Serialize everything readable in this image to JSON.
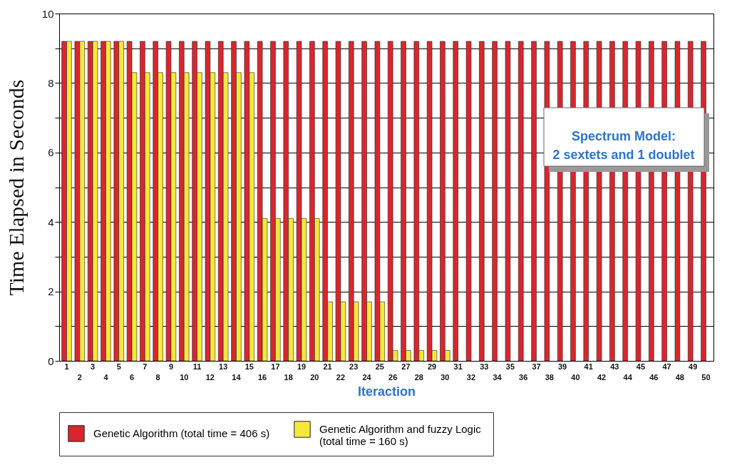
{
  "chart_data": {
    "type": "bar",
    "categories": [
      "1",
      "2",
      "3",
      "4",
      "5",
      "6",
      "7",
      "8",
      "9",
      "10",
      "11",
      "12",
      "13",
      "14",
      "15",
      "16",
      "17",
      "18",
      "19",
      "20",
      "21",
      "22",
      "23",
      "24",
      "25",
      "26",
      "27",
      "28",
      "29",
      "30",
      "31",
      "32",
      "33",
      "34",
      "35",
      "36",
      "37",
      "38",
      "39",
      "40",
      "41",
      "42",
      "43",
      "44",
      "45",
      "46",
      "47",
      "48",
      "49",
      "50"
    ],
    "series": [
      {
        "name": "Genetic Algorithm (total time = 406 s)",
        "color": "#d9262e",
        "values": [
          9.2,
          9.2,
          9.2,
          9.2,
          9.2,
          9.2,
          9.2,
          9.2,
          9.2,
          9.2,
          9.2,
          9.2,
          9.2,
          9.2,
          9.2,
          9.2,
          9.2,
          9.2,
          9.2,
          9.2,
          9.2,
          9.2,
          9.2,
          9.2,
          9.2,
          9.2,
          9.2,
          9.2,
          9.2,
          9.2,
          9.2,
          9.2,
          9.2,
          9.2,
          9.2,
          9.2,
          9.2,
          9.2,
          9.2,
          9.2,
          9.2,
          9.2,
          9.2,
          9.2,
          9.2,
          9.2,
          9.2,
          9.2,
          9.2,
          9.2
        ]
      },
      {
        "name": "Genetic Algorithm  and fuzzy Logic (total time = 160 s)",
        "color": "#f5e83c",
        "values": [
          9.2,
          9.2,
          9.2,
          9.2,
          9.2,
          8.3,
          8.3,
          8.3,
          8.3,
          8.3,
          8.3,
          8.3,
          8.3,
          8.3,
          8.3,
          4.1,
          4.1,
          4.1,
          4.1,
          4.1,
          1.7,
          1.7,
          1.7,
          1.7,
          1.7,
          0.3,
          0.3,
          0.3,
          0.3,
          0.3,
          null,
          null,
          null,
          null,
          null,
          null,
          null,
          null,
          null,
          null,
          null,
          null,
          null,
          null,
          null,
          null,
          null,
          null,
          null,
          null
        ]
      }
    ],
    "xlabel": "Iteraction",
    "ylabel": "Time Elapsed in Seconds",
    "ylim": [
      0,
      10
    ],
    "yticks": [
      0,
      {
        "value": 1,
        "label": null
      },
      2,
      {
        "value": 3,
        "label": null
      },
      4,
      {
        "value": 5,
        "label": null
      },
      6,
      {
        "value": 7,
        "label": null
      },
      8,
      {
        "value": 9,
        "label": null
      },
      10
    ],
    "grid": "y",
    "legend": "bottom",
    "annotations": [
      "Spectrum Model:\n2 sextets and 1 doublet"
    ]
  }
}
